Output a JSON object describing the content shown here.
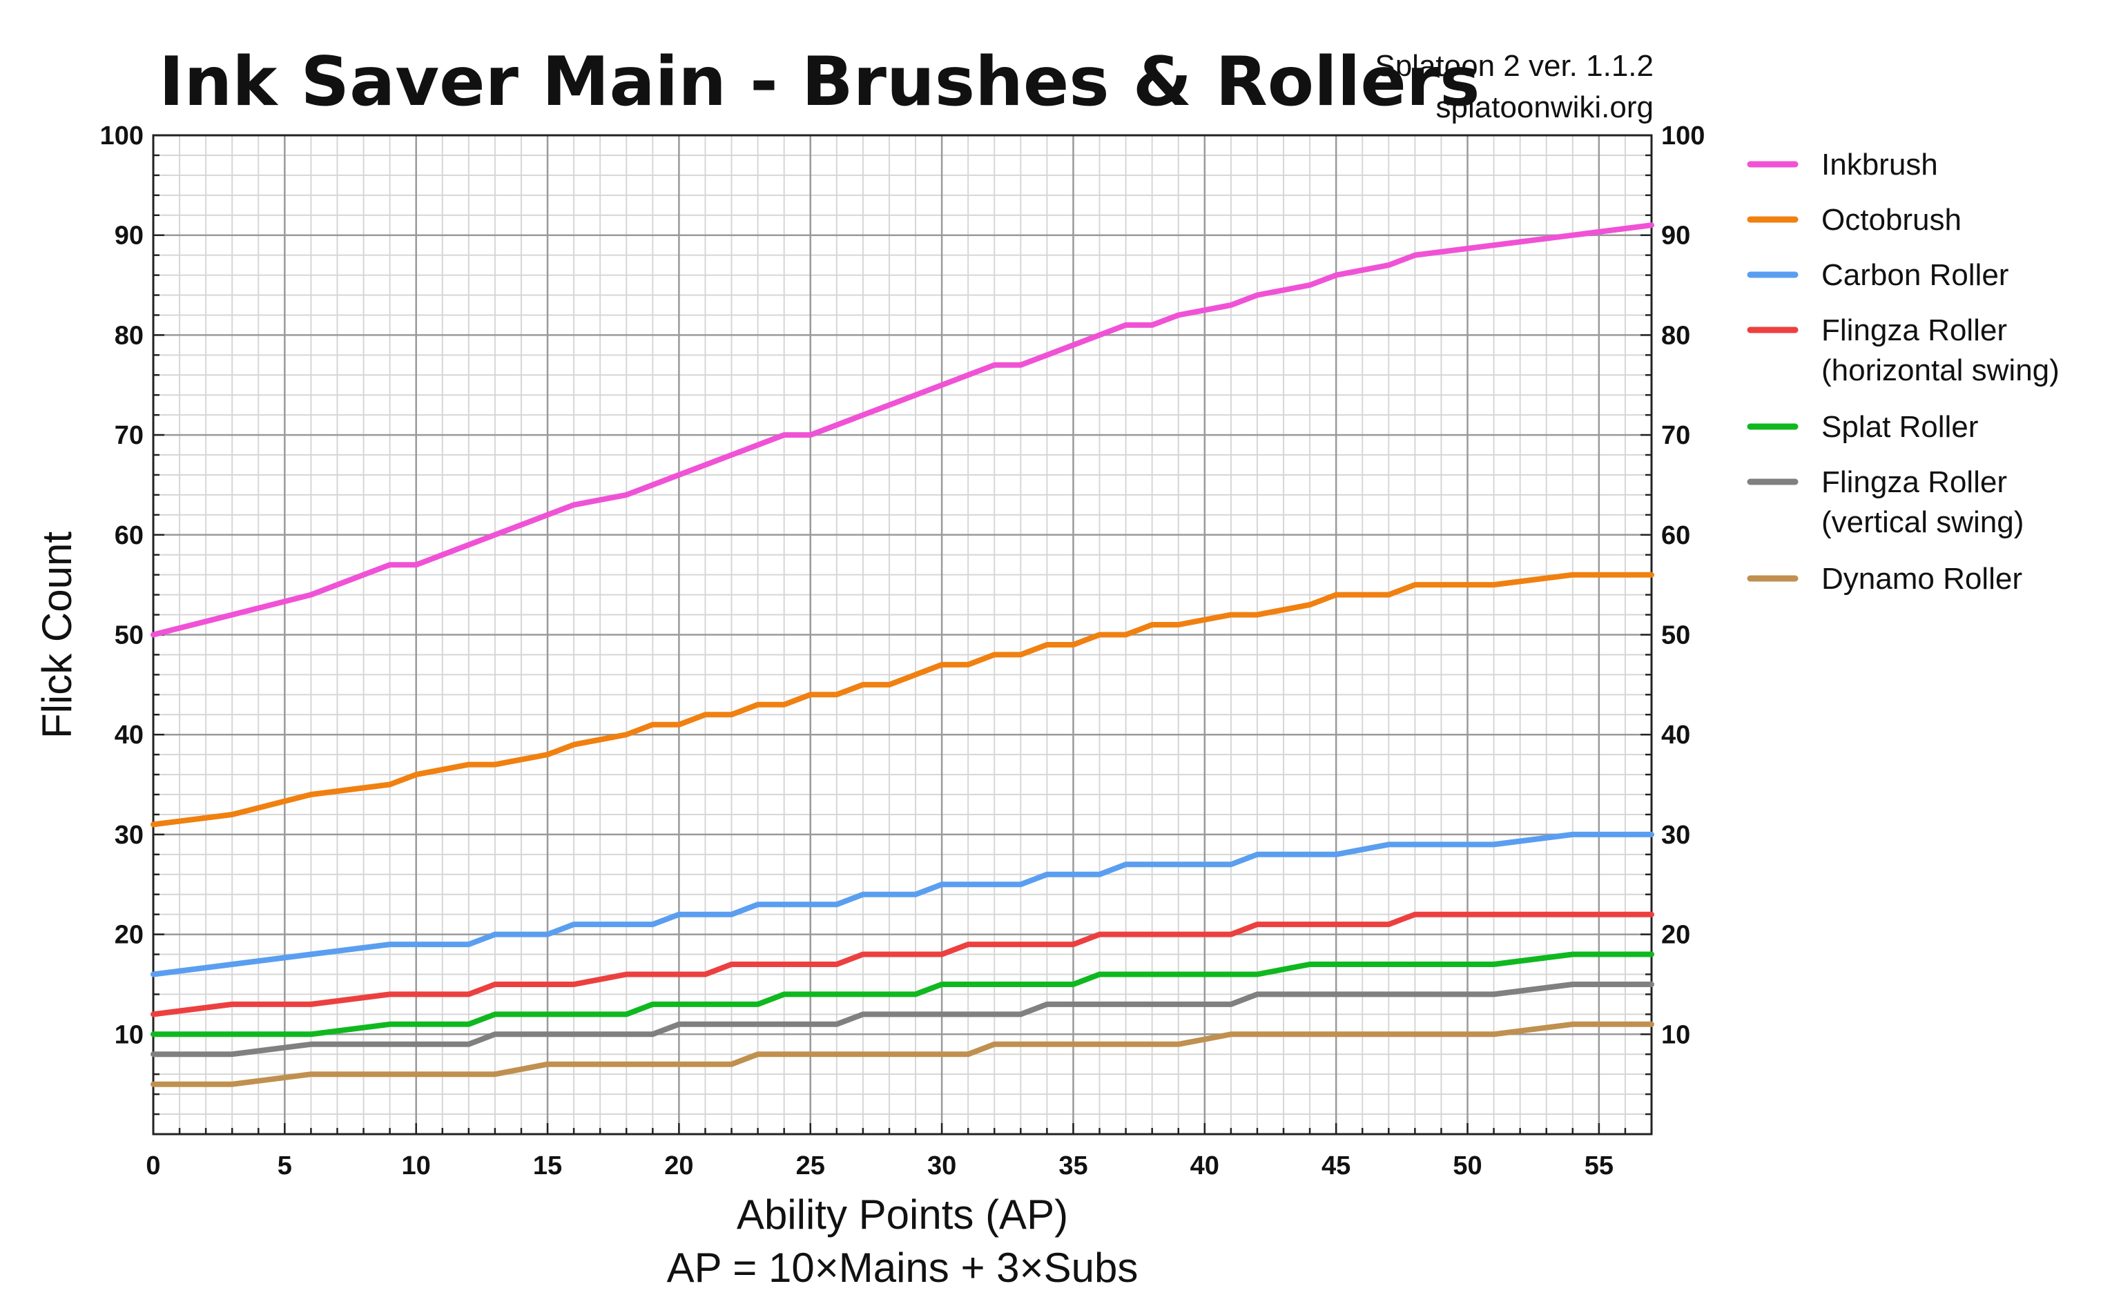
{
  "chart_data": {
    "type": "line",
    "title": "Ink Saver Main - Brushes & Rollers",
    "credit": [
      "Splatoon 2 ver. 1.1.2",
      "splatoonwiki.org"
    ],
    "xlabel": "Ability Points (AP)",
    "xlabel2": "AP = 10×Mains + 3×Subs",
    "ylabel": "Flick Count",
    "xlim": [
      0,
      57
    ],
    "ylim": [
      0,
      100
    ],
    "xticks": [
      0,
      5,
      10,
      15,
      20,
      25,
      30,
      35,
      40,
      45,
      50,
      55
    ],
    "yticks": [
      10,
      20,
      30,
      40,
      50,
      60,
      70,
      80,
      90,
      100
    ],
    "grid": true,
    "legend_position": "right",
    "series": [
      {
        "name": "Inkbrush",
        "color": "#f052d6",
        "x": [
          0,
          3,
          6,
          9,
          10,
          13,
          16,
          18,
          21,
          24,
          25,
          28,
          31,
          32,
          33,
          36,
          37,
          38,
          39,
          41,
          42,
          44,
          45,
          47,
          48,
          51,
          54,
          57
        ],
        "y": [
          50,
          52,
          54,
          57,
          57,
          60,
          63,
          64,
          67,
          70,
          70,
          73,
          76,
          77,
          77,
          80,
          81,
          81,
          82,
          83,
          84,
          85,
          86,
          87,
          88,
          89,
          90,
          91
        ]
      },
      {
        "name": "Octobrush",
        "color": "#f08010",
        "x": [
          0,
          3,
          6,
          9,
          10,
          12,
          13,
          15,
          16,
          18,
          19,
          20,
          21,
          22,
          23,
          24,
          25,
          26,
          27,
          28,
          30,
          31,
          32,
          33,
          34,
          35,
          36,
          37,
          38,
          39,
          41,
          42,
          44,
          45,
          47,
          48,
          51,
          54,
          57
        ],
        "y": [
          31,
          32,
          34,
          35,
          36,
          37,
          37,
          38,
          39,
          40,
          41,
          41,
          42,
          42,
          43,
          43,
          44,
          44,
          45,
          45,
          47,
          47,
          48,
          48,
          49,
          49,
          50,
          50,
          51,
          51,
          52,
          52,
          53,
          54,
          54,
          55,
          55,
          56,
          56
        ]
      },
      {
        "name": "Carbon Roller",
        "color": "#5a9ef0",
        "x": [
          0,
          3,
          6,
          9,
          12,
          13,
          15,
          16,
          19,
          20,
          22,
          23,
          26,
          27,
          29,
          30,
          33,
          34,
          36,
          37,
          41,
          42,
          45,
          47,
          51,
          54,
          57
        ],
        "y": [
          16,
          17,
          18,
          19,
          19,
          20,
          20,
          21,
          21,
          22,
          22,
          23,
          23,
          24,
          24,
          25,
          25,
          26,
          26,
          27,
          27,
          28,
          28,
          29,
          29,
          30,
          30
        ]
      },
      {
        "name": "Flingza Roller",
        "name2": "(horizontal swing)",
        "color": "#ec4040",
        "x": [
          0,
          3,
          6,
          9,
          12,
          13,
          16,
          18,
          21,
          22,
          26,
          27,
          30,
          31,
          35,
          36,
          41,
          42,
          47,
          48,
          57
        ],
        "y": [
          12,
          13,
          13,
          14,
          14,
          15,
          15,
          16,
          16,
          17,
          17,
          18,
          18,
          19,
          19,
          20,
          20,
          21,
          21,
          22,
          22
        ]
      },
      {
        "name": "Splat Roller",
        "color": "#10b820",
        "x": [
          0,
          6,
          9,
          12,
          13,
          18,
          19,
          23,
          24,
          29,
          30,
          35,
          36,
          42,
          44,
          51,
          54,
          57
        ],
        "y": [
          10,
          10,
          11,
          11,
          12,
          12,
          13,
          13,
          14,
          14,
          15,
          15,
          16,
          16,
          17,
          17,
          18,
          18
        ]
      },
      {
        "name": "Flingza Roller",
        "name2": "(vertical swing)",
        "color": "#808080",
        "x": [
          0,
          3,
          6,
          12,
          13,
          19,
          20,
          26,
          27,
          33,
          34,
          41,
          42,
          51,
          54,
          57
        ],
        "y": [
          8,
          8,
          9,
          9,
          10,
          10,
          11,
          11,
          12,
          12,
          13,
          13,
          14,
          14,
          15,
          15
        ]
      },
      {
        "name": "Dynamo Roller",
        "color": "#c09050",
        "x": [
          0,
          3,
          6,
          13,
          15,
          22,
          23,
          31,
          32,
          39,
          41,
          51,
          54,
          57
        ],
        "y": [
          5,
          5,
          6,
          6,
          7,
          7,
          8,
          8,
          9,
          9,
          10,
          10,
          11,
          11
        ]
      }
    ]
  }
}
